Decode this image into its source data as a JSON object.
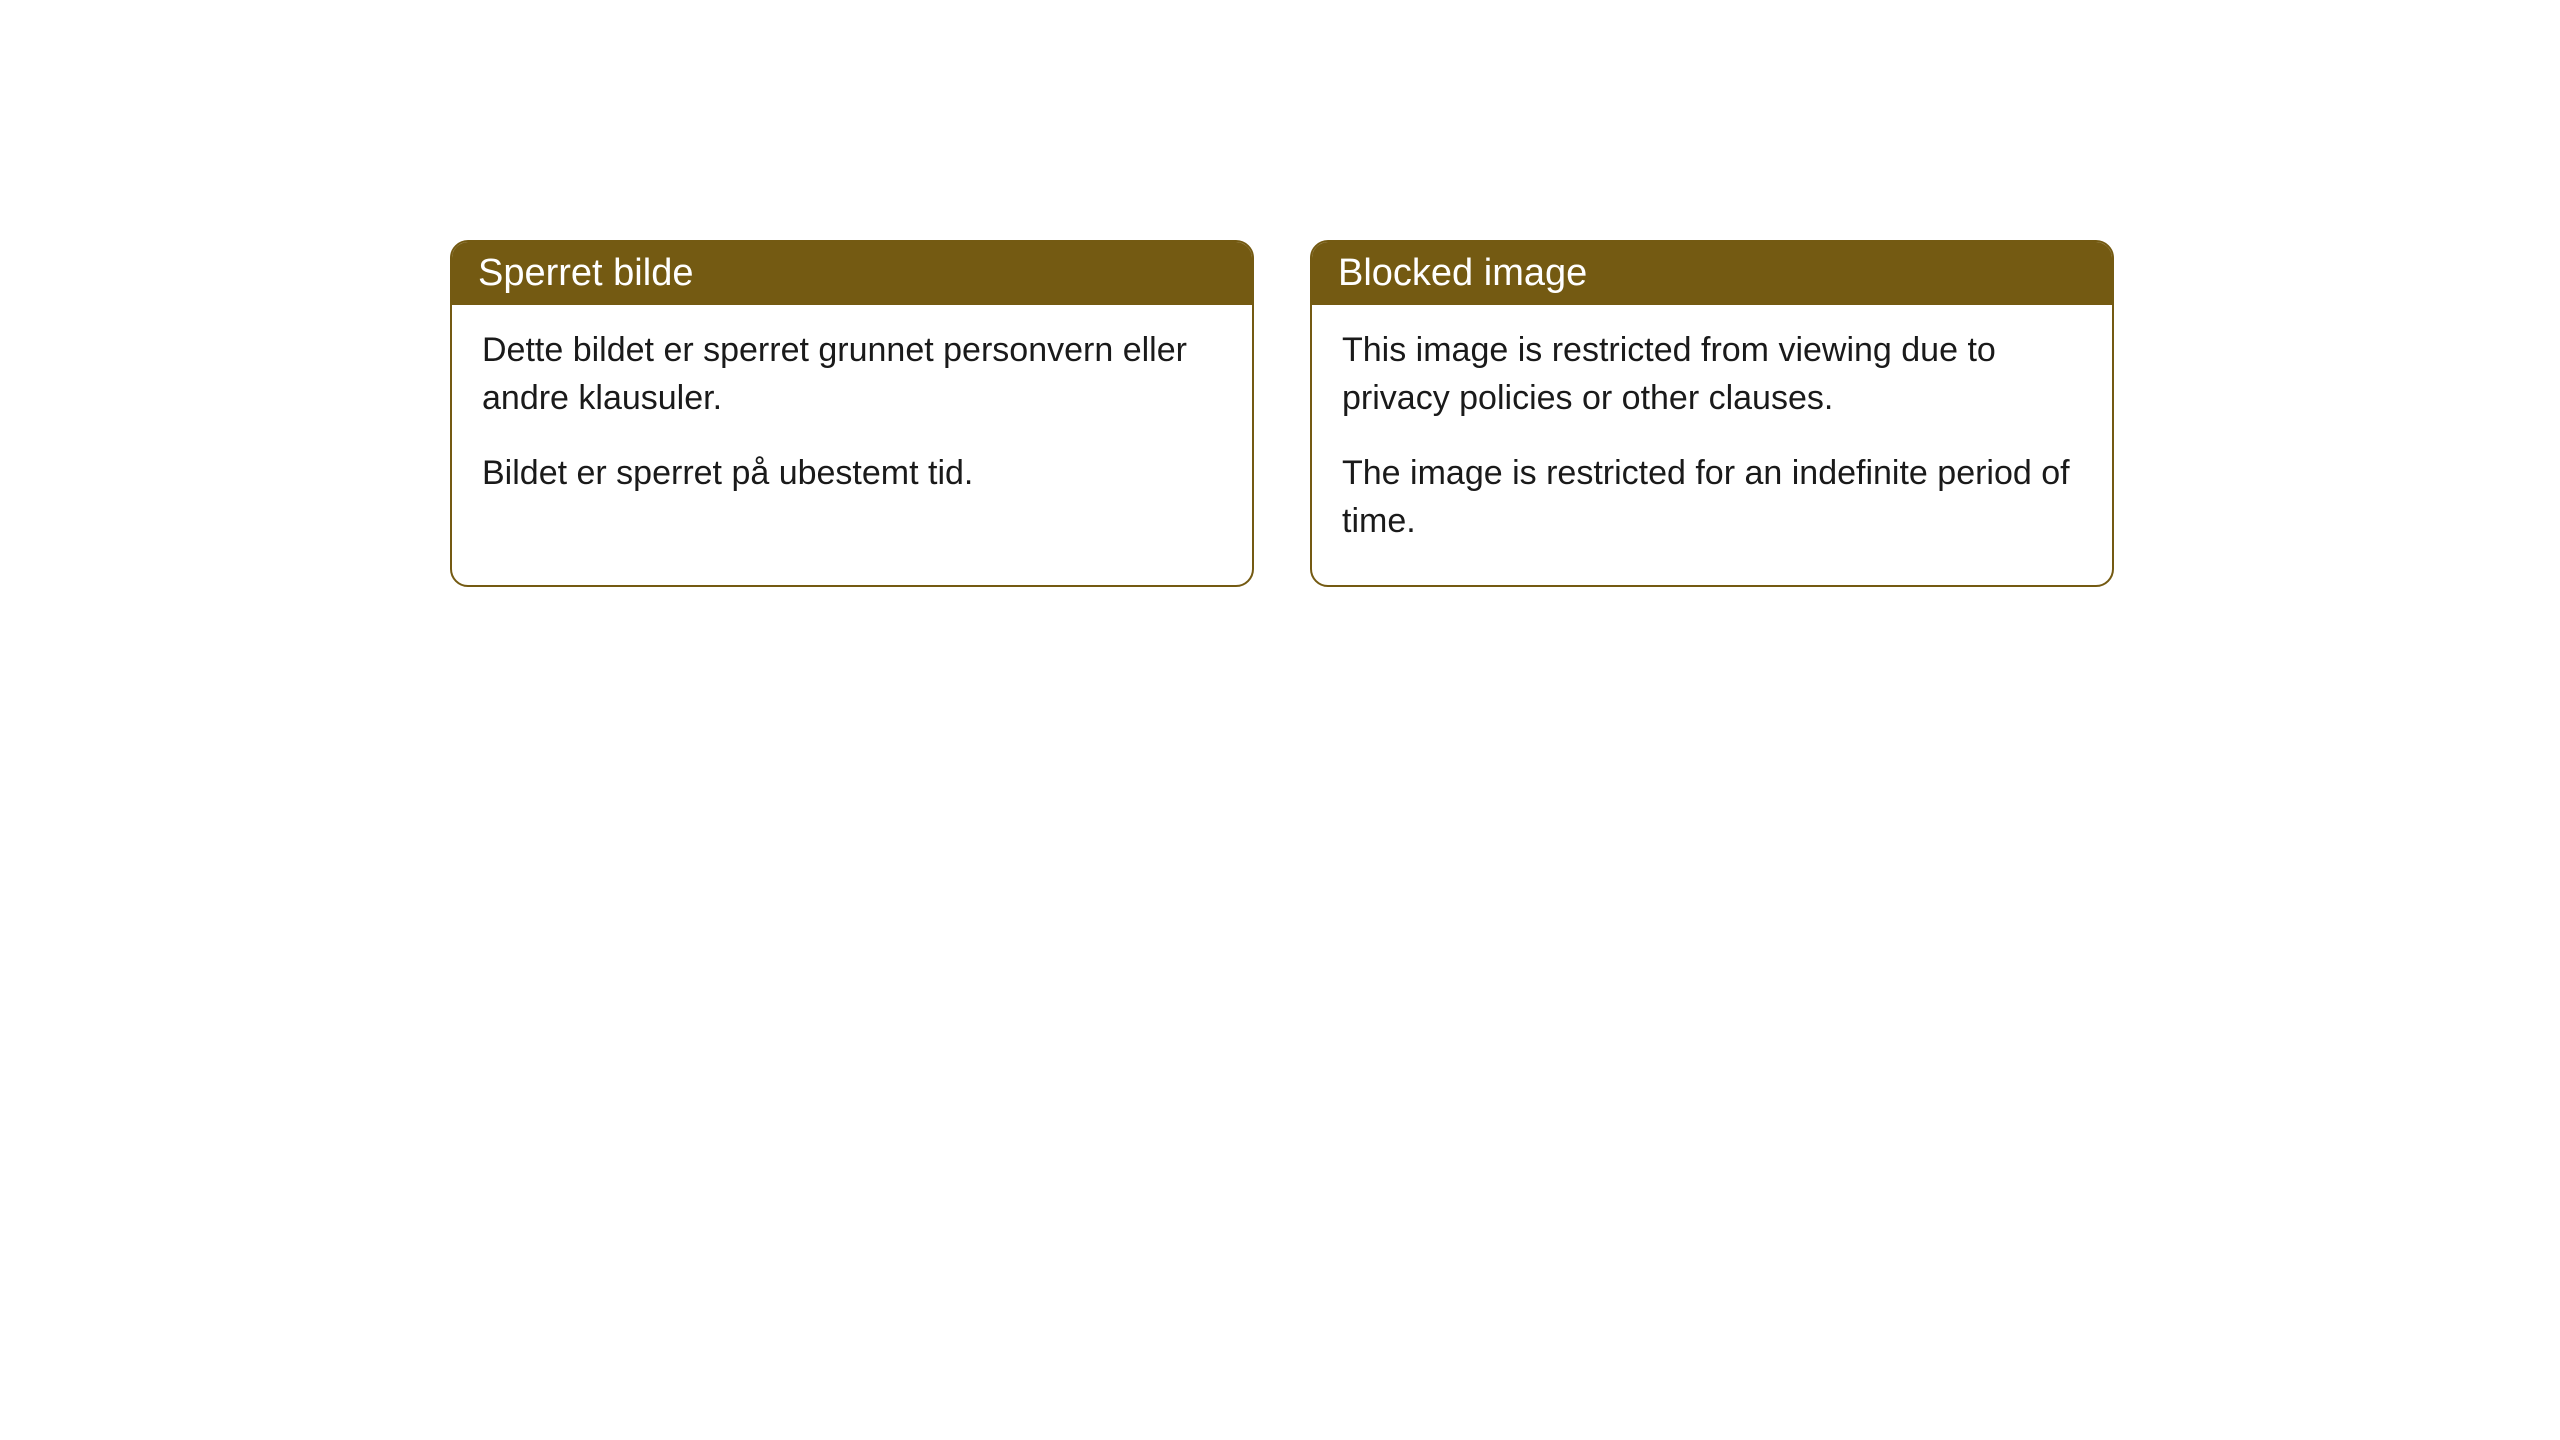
{
  "cards": [
    {
      "title": "Sperret bilde",
      "paragraph1": "Dette bildet er sperret grunnet personvern eller andre klausuler.",
      "paragraph2": "Bildet er sperret på ubestemt tid."
    },
    {
      "title": "Blocked image",
      "paragraph1": "This image is restricted from viewing due to privacy policies or other clauses.",
      "paragraph2": "The image is restricted for an indefinite period of time."
    }
  ],
  "styling": {
    "header_background": "#745a12",
    "header_text_color": "#ffffff",
    "border_color": "#745a12",
    "body_background": "#ffffff",
    "body_text_color": "#1a1a1a",
    "border_radius": 18,
    "title_fontsize": 38,
    "body_fontsize": 34
  }
}
